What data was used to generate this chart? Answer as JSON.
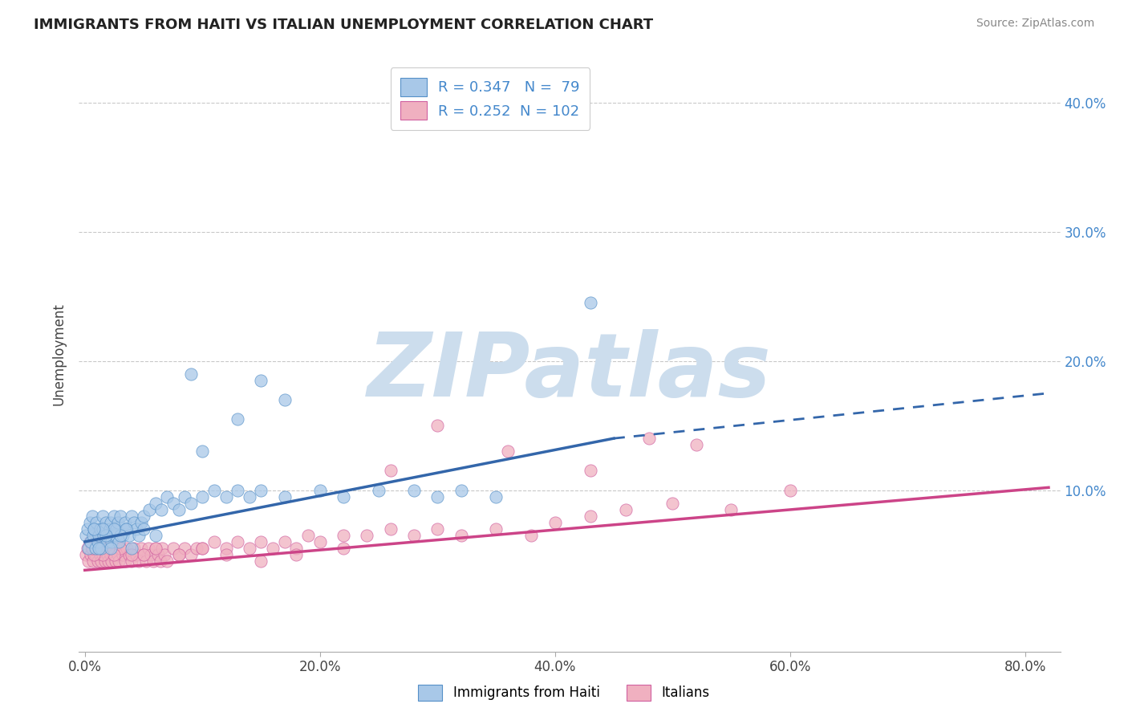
{
  "title": "IMMIGRANTS FROM HAITI VS ITALIAN UNEMPLOYMENT CORRELATION CHART",
  "source_text": "Source: ZipAtlas.com",
  "xlabel_ticks": [
    "0.0%",
    "20.0%",
    "40.0%",
    "60.0%",
    "80.0%"
  ],
  "xlabel_vals": [
    0.0,
    0.2,
    0.4,
    0.6,
    0.8
  ],
  "ylabel_ticks": [
    "10.0%",
    "20.0%",
    "30.0%",
    "40.0%"
  ],
  "ylabel_vals": [
    0.1,
    0.2,
    0.3,
    0.4
  ],
  "xlim": [
    -0.005,
    0.83
  ],
  "ylim": [
    -0.025,
    0.435
  ],
  "blue_R": 0.347,
  "blue_N": 79,
  "pink_R": 0.252,
  "pink_N": 102,
  "blue_color": "#a8c8e8",
  "blue_edge_color": "#5590c8",
  "blue_line_color": "#3366aa",
  "pink_color": "#f0b0c0",
  "pink_edge_color": "#d060a0",
  "pink_line_color": "#cc4488",
  "grid_color": "#bbbbbb",
  "background_color": "#ffffff",
  "watermark_text": "ZIPatlas",
  "watermark_color": "#ccdded",
  "legend_label_blue": "Immigrants from Haiti",
  "legend_label_pink": "Italians",
  "ylabel": "Unemployment",
  "blue_trend_x0": 0.0,
  "blue_trend_x1": 0.45,
  "blue_trend_x_dash_end": 0.82,
  "blue_trend_y0": 0.06,
  "blue_trend_y1": 0.14,
  "blue_trend_y_dash_end": 0.175,
  "pink_trend_x0": 0.0,
  "pink_trend_x1": 0.82,
  "pink_trend_y0": 0.038,
  "pink_trend_y1": 0.102,
  "blue_scatter_x": [
    0.001,
    0.002,
    0.003,
    0.004,
    0.005,
    0.006,
    0.007,
    0.008,
    0.009,
    0.01,
    0.011,
    0.012,
    0.013,
    0.014,
    0.015,
    0.016,
    0.017,
    0.018,
    0.019,
    0.02,
    0.021,
    0.022,
    0.023,
    0.024,
    0.025,
    0.026,
    0.027,
    0.028,
    0.029,
    0.03,
    0.032,
    0.034,
    0.036,
    0.038,
    0.04,
    0.042,
    0.044,
    0.046,
    0.048,
    0.05,
    0.055,
    0.06,
    0.065,
    0.07,
    0.075,
    0.08,
    0.085,
    0.09,
    0.1,
    0.11,
    0.12,
    0.13,
    0.14,
    0.15,
    0.17,
    0.2,
    0.22,
    0.25,
    0.28,
    0.3,
    0.32,
    0.35,
    0.15,
    0.43,
    0.17,
    0.09,
    0.13,
    0.1,
    0.06,
    0.05,
    0.04,
    0.035,
    0.03,
    0.025,
    0.022,
    0.018,
    0.015,
    0.012,
    0.008
  ],
  "blue_scatter_y": [
    0.065,
    0.07,
    0.055,
    0.075,
    0.06,
    0.08,
    0.065,
    0.07,
    0.055,
    0.075,
    0.06,
    0.065,
    0.07,
    0.055,
    0.08,
    0.065,
    0.07,
    0.075,
    0.06,
    0.065,
    0.07,
    0.075,
    0.06,
    0.065,
    0.08,
    0.065,
    0.07,
    0.075,
    0.06,
    0.08,
    0.065,
    0.075,
    0.07,
    0.065,
    0.08,
    0.075,
    0.07,
    0.065,
    0.075,
    0.08,
    0.085,
    0.09,
    0.085,
    0.095,
    0.09,
    0.085,
    0.095,
    0.09,
    0.095,
    0.1,
    0.095,
    0.1,
    0.095,
    0.1,
    0.095,
    0.1,
    0.095,
    0.1,
    0.1,
    0.095,
    0.1,
    0.095,
    0.185,
    0.245,
    0.17,
    0.19,
    0.155,
    0.13,
    0.065,
    0.07,
    0.055,
    0.07,
    0.065,
    0.07,
    0.055,
    0.065,
    0.07,
    0.055,
    0.07
  ],
  "pink_scatter_x": [
    0.001,
    0.002,
    0.003,
    0.004,
    0.005,
    0.006,
    0.007,
    0.008,
    0.009,
    0.01,
    0.011,
    0.012,
    0.013,
    0.014,
    0.015,
    0.016,
    0.017,
    0.018,
    0.019,
    0.02,
    0.021,
    0.022,
    0.023,
    0.024,
    0.025,
    0.026,
    0.027,
    0.028,
    0.029,
    0.03,
    0.032,
    0.034,
    0.036,
    0.038,
    0.04,
    0.042,
    0.044,
    0.046,
    0.048,
    0.05,
    0.052,
    0.054,
    0.056,
    0.058,
    0.06,
    0.062,
    0.064,
    0.066,
    0.068,
    0.07,
    0.075,
    0.08,
    0.085,
    0.09,
    0.095,
    0.1,
    0.11,
    0.12,
    0.13,
    0.14,
    0.15,
    0.16,
    0.17,
    0.18,
    0.19,
    0.2,
    0.22,
    0.24,
    0.26,
    0.28,
    0.3,
    0.32,
    0.35,
    0.38,
    0.4,
    0.43,
    0.46,
    0.5,
    0.55,
    0.6,
    0.48,
    0.52,
    0.43,
    0.36,
    0.3,
    0.26,
    0.22,
    0.18,
    0.15,
    0.12,
    0.1,
    0.08,
    0.06,
    0.05,
    0.04,
    0.03,
    0.025,
    0.02,
    0.015,
    0.01,
    0.008,
    0.006
  ],
  "pink_scatter_y": [
    0.05,
    0.055,
    0.045,
    0.06,
    0.05,
    0.055,
    0.045,
    0.06,
    0.05,
    0.055,
    0.045,
    0.055,
    0.05,
    0.045,
    0.055,
    0.05,
    0.045,
    0.055,
    0.05,
    0.045,
    0.055,
    0.05,
    0.045,
    0.055,
    0.05,
    0.045,
    0.055,
    0.05,
    0.045,
    0.055,
    0.05,
    0.045,
    0.055,
    0.05,
    0.045,
    0.055,
    0.05,
    0.045,
    0.055,
    0.05,
    0.045,
    0.055,
    0.05,
    0.045,
    0.055,
    0.05,
    0.045,
    0.055,
    0.05,
    0.045,
    0.055,
    0.05,
    0.055,
    0.05,
    0.055,
    0.055,
    0.06,
    0.055,
    0.06,
    0.055,
    0.06,
    0.055,
    0.06,
    0.055,
    0.065,
    0.06,
    0.065,
    0.065,
    0.07,
    0.065,
    0.07,
    0.065,
    0.07,
    0.065,
    0.075,
    0.08,
    0.085,
    0.09,
    0.085,
    0.1,
    0.14,
    0.135,
    0.115,
    0.13,
    0.15,
    0.115,
    0.055,
    0.05,
    0.045,
    0.05,
    0.055,
    0.05,
    0.055,
    0.05,
    0.05,
    0.055,
    0.05,
    0.055,
    0.05,
    0.055,
    0.05,
    0.055
  ]
}
